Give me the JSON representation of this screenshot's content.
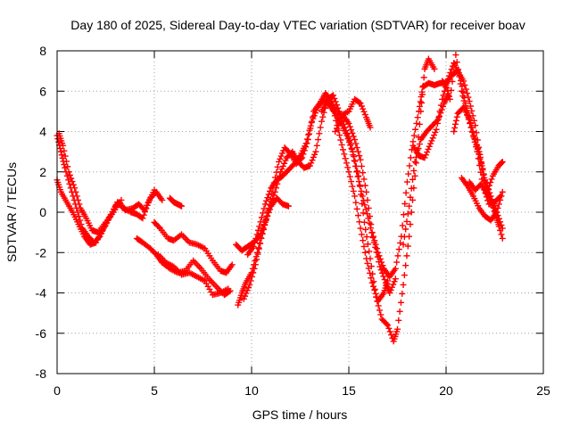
{
  "chart_data": {
    "type": "scatter",
    "title": "Day 180 of 2025, Sidereal Day-to-day VTEC variation (SDTVAR) for receiver boav",
    "xlabel": "GPS time / hours",
    "ylabel": "SDTVAR / TECUs",
    "xlim": [
      0,
      25
    ],
    "ylim": [
      -8,
      8
    ],
    "xticks": [
      "0",
      "5",
      "10",
      "15",
      "20",
      "25"
    ],
    "yticks": [
      "-8",
      "-6",
      "-4",
      "-2",
      "0",
      "2",
      "4",
      "6",
      "8"
    ],
    "grid": true,
    "marker": "+",
    "color": "#ff0000",
    "series": [
      {
        "points": [
          [
            0.0,
            3.8
          ],
          [
            0.2,
            3.0
          ],
          [
            0.4,
            2.2
          ],
          [
            0.7,
            1.2
          ],
          [
            1.0,
            0.2
          ],
          [
            1.3,
            -0.8
          ],
          [
            1.6,
            -1.2
          ],
          [
            1.9,
            -1.5
          ],
          [
            2.2,
            -1.2
          ],
          [
            2.6,
            -0.4
          ],
          [
            3.0,
            0.3
          ],
          [
            3.2,
            0.5
          ],
          [
            3.5,
            0.1
          ],
          [
            3.9,
            0.2
          ],
          [
            4.2,
            0.4
          ],
          [
            4.5,
            0.1
          ],
          [
            4.8,
            0.7
          ],
          [
            5.1,
            1.0
          ],
          [
            5.4,
            0.6
          ]
        ]
      },
      {
        "points": [
          [
            0.0,
            1.6
          ],
          [
            0.2,
            1.0
          ],
          [
            0.5,
            0.5
          ],
          [
            0.8,
            0.0
          ],
          [
            1.1,
            -0.6
          ],
          [
            1.4,
            -1.2
          ],
          [
            1.7,
            -1.6
          ],
          [
            2.0,
            -1.5
          ],
          [
            2.4,
            -0.8
          ],
          [
            2.8,
            -0.1
          ],
          [
            3.1,
            0.5
          ],
          [
            3.4,
            0.2
          ],
          [
            3.8,
            0.0
          ],
          [
            4.1,
            -0.1
          ],
          [
            4.4,
            -0.3
          ],
          [
            4.7,
            0.5
          ],
          [
            5.0,
            1.1
          ]
        ]
      },
      {
        "points": [
          [
            0.1,
            3.9
          ],
          [
            0.3,
            3.3
          ],
          [
            0.6,
            2.0
          ],
          [
            0.9,
            1.2
          ],
          [
            1.2,
            0.2
          ],
          [
            1.5,
            -0.3
          ],
          [
            1.8,
            -0.9
          ],
          [
            2.1,
            -1.0
          ],
          [
            2.5,
            -0.5
          ],
          [
            2.9,
            0.0
          ],
          [
            3.3,
            0.6
          ]
        ]
      },
      {
        "points": [
          [
            5.8,
            0.7
          ],
          [
            6.0,
            0.5
          ],
          [
            6.2,
            0.4
          ],
          [
            6.4,
            0.3
          ]
        ]
      },
      {
        "points": [
          [
            5.0,
            -0.5
          ],
          [
            5.3,
            -0.8
          ],
          [
            5.7,
            -1.3
          ],
          [
            6.0,
            -1.4
          ],
          [
            6.4,
            -1.1
          ],
          [
            6.8,
            -1.5
          ],
          [
            7.2,
            -1.6
          ],
          [
            7.6,
            -1.8
          ],
          [
            8.0,
            -2.4
          ],
          [
            8.4,
            -2.9
          ],
          [
            8.7,
            -3.0
          ],
          [
            9.0,
            -2.6
          ]
        ]
      },
      {
        "points": [
          [
            4.1,
            -1.3
          ],
          [
            4.4,
            -1.5
          ],
          [
            4.8,
            -1.8
          ],
          [
            5.1,
            -2.1
          ],
          [
            5.4,
            -2.5
          ],
          [
            5.8,
            -2.8
          ],
          [
            6.2,
            -3.0
          ],
          [
            6.6,
            -2.9
          ],
          [
            7.0,
            -2.4
          ],
          [
            7.4,
            -2.8
          ],
          [
            7.8,
            -3.3
          ],
          [
            8.2,
            -3.7
          ],
          [
            8.6,
            -4.1
          ],
          [
            8.9,
            -3.9
          ]
        ]
      },
      {
        "points": [
          [
            5.2,
            -2.1
          ],
          [
            5.6,
            -2.5
          ],
          [
            6.0,
            -2.7
          ],
          [
            6.4,
            -3.1
          ],
          [
            6.8,
            -3.0
          ],
          [
            7.2,
            -3.2
          ],
          [
            7.6,
            -3.4
          ],
          [
            8.0,
            -4.1
          ],
          [
            8.4,
            -4.0
          ],
          [
            8.8,
            -3.8
          ]
        ]
      },
      {
        "points": [
          [
            9.2,
            -1.6
          ],
          [
            9.5,
            -1.9
          ],
          [
            9.8,
            -1.7
          ],
          [
            10.1,
            -1.5
          ],
          [
            10.4,
            -1.2
          ],
          [
            10.7,
            -0.5
          ],
          [
            11.0,
            0.3
          ],
          [
            11.3,
            0.7
          ],
          [
            11.6,
            0.4
          ],
          [
            11.9,
            0.3
          ]
        ]
      },
      {
        "points": [
          [
            9.3,
            -4.6
          ],
          [
            9.5,
            -4.0
          ],
          [
            9.7,
            -3.5
          ],
          [
            10.0,
            -3.0
          ],
          [
            10.3,
            -2.0
          ],
          [
            10.6,
            -0.8
          ],
          [
            10.9,
            0.2
          ],
          [
            11.2,
            1.0
          ],
          [
            11.5,
            2.0
          ],
          [
            11.8,
            2.7
          ],
          [
            12.1,
            3.0
          ],
          [
            12.4,
            2.5
          ],
          [
            12.7,
            2.2
          ],
          [
            13.0,
            2.3
          ],
          [
            13.3,
            3.0
          ],
          [
            13.6,
            4.5
          ],
          [
            13.9,
            5.6
          ],
          [
            14.2,
            5.8
          ],
          [
            14.5,
            5.0
          ],
          [
            14.8,
            4.2
          ],
          [
            15.1,
            3.4
          ],
          [
            15.4,
            2.0
          ],
          [
            15.7,
            0.8
          ],
          [
            16.0,
            -0.3
          ],
          [
            16.3,
            -1.5
          ],
          [
            16.6,
            -2.7
          ],
          [
            16.9,
            -3.5
          ],
          [
            17.1,
            -4.0
          ],
          [
            17.4,
            -3.3
          ]
        ]
      },
      {
        "points": [
          [
            9.6,
            -4.3
          ],
          [
            9.9,
            -3.6
          ],
          [
            10.2,
            -2.6
          ],
          [
            10.5,
            -1.3
          ],
          [
            10.8,
            -0.2
          ],
          [
            11.1,
            1.2
          ],
          [
            11.4,
            2.5
          ],
          [
            11.7,
            3.2
          ],
          [
            12.0,
            2.9
          ],
          [
            12.3,
            2.4
          ],
          [
            12.6,
            2.7
          ],
          [
            12.9,
            3.6
          ],
          [
            13.2,
            5.0
          ],
          [
            13.5,
            5.4
          ],
          [
            13.8,
            5.9
          ],
          [
            14.1,
            5.5
          ],
          [
            14.4,
            4.3
          ],
          [
            14.7,
            3.1
          ],
          [
            15.0,
            2.0
          ],
          [
            15.3,
            0.8
          ],
          [
            15.6,
            -0.8
          ],
          [
            15.9,
            -2.3
          ],
          [
            16.2,
            -3.5
          ],
          [
            16.5,
            -4.4
          ],
          [
            16.8,
            -4.0
          ],
          [
            17.0,
            -3.4
          ]
        ]
      },
      {
        "points": [
          [
            9.8,
            -2.1
          ],
          [
            10.1,
            -1.7
          ],
          [
            10.4,
            -0.7
          ],
          [
            10.7,
            0.4
          ],
          [
            11.0,
            1.2
          ],
          [
            11.3,
            1.6
          ],
          [
            11.6,
            1.8
          ],
          [
            11.9,
            2.1
          ],
          [
            12.2,
            2.4
          ],
          [
            12.5,
            2.8
          ],
          [
            12.8,
            3.4
          ],
          [
            13.1,
            4.5
          ],
          [
            13.4,
            5.2
          ],
          [
            13.7,
            5.6
          ],
          [
            14.0,
            5.3
          ],
          [
            14.3,
            4.9
          ],
          [
            14.6,
            4.4
          ],
          [
            14.9,
            3.8
          ],
          [
            15.2,
            3.0
          ],
          [
            15.5,
            1.8
          ],
          [
            15.8,
            -0.5
          ],
          [
            16.1,
            -2.3
          ],
          [
            16.4,
            -4.2
          ],
          [
            16.7,
            -5.3
          ],
          [
            17.0,
            -5.6
          ],
          [
            17.3,
            -6.4
          ],
          [
            17.5,
            -5.8
          ],
          [
            17.8,
            -3.6
          ],
          [
            18.1,
            -1.2
          ],
          [
            18.4,
            1.8
          ],
          [
            18.7,
            5.0
          ],
          [
            18.9,
            7.1
          ],
          [
            19.1,
            7.6
          ],
          [
            19.4,
            7.1
          ]
        ]
      },
      {
        "points": [
          [
            13.6,
            5.0
          ],
          [
            13.9,
            5.5
          ],
          [
            14.2,
            5.3
          ],
          [
            14.6,
            4.8
          ],
          [
            15.0,
            5.0
          ],
          [
            15.3,
            5.6
          ],
          [
            15.6,
            5.4
          ],
          [
            15.9,
            4.7
          ],
          [
            16.1,
            4.2
          ]
        ]
      },
      {
        "points": [
          [
            14.3,
            4.0
          ],
          [
            14.7,
            4.8
          ],
          [
            15.0,
            4.4
          ],
          [
            15.3,
            3.6
          ],
          [
            15.6,
            2.6
          ],
          [
            15.9,
            1.0
          ],
          [
            16.2,
            -1.0
          ],
          [
            16.5,
            -2.0
          ],
          [
            16.8,
            -2.8
          ],
          [
            17.1,
            -3.2
          ],
          [
            17.4,
            -2.8
          ],
          [
            17.7,
            -1.2
          ],
          [
            18.0,
            1.5
          ],
          [
            18.3,
            3.5
          ],
          [
            18.6,
            5.0
          ],
          [
            18.8,
            6.2
          ],
          [
            19.1,
            6.4
          ],
          [
            19.4,
            6.3
          ],
          [
            19.7,
            6.4
          ],
          [
            20.0,
            6.4
          ],
          [
            20.3,
            6.8
          ],
          [
            20.6,
            7.0
          ],
          [
            20.9,
            6.5
          ],
          [
            21.2,
            5.5
          ],
          [
            21.5,
            4.3
          ],
          [
            21.8,
            2.5
          ],
          [
            22.0,
            1.5
          ],
          [
            22.3,
            0.6
          ],
          [
            22.6,
            -0.3
          ],
          [
            22.9,
            -1.3
          ]
        ]
      },
      {
        "points": [
          [
            18.3,
            3.3
          ],
          [
            18.6,
            2.8
          ],
          [
            18.9,
            2.7
          ],
          [
            19.2,
            3.4
          ],
          [
            19.5,
            4.1
          ],
          [
            19.8,
            5.6
          ],
          [
            20.1,
            6.6
          ],
          [
            20.4,
            7.4
          ],
          [
            20.7,
            6.8
          ],
          [
            21.0,
            5.4
          ],
          [
            21.3,
            4.2
          ],
          [
            21.6,
            3.0
          ],
          [
            21.9,
            1.3
          ],
          [
            22.2,
            0.4
          ],
          [
            22.5,
            0.5
          ],
          [
            22.8,
            0.8
          ]
        ]
      },
      {
        "points": [
          [
            17.8,
            -1.6
          ],
          [
            18.1,
            0.3
          ],
          [
            18.4,
            2.5
          ],
          [
            18.7,
            3.6
          ],
          [
            19.0,
            4.0
          ],
          [
            19.3,
            4.3
          ],
          [
            19.6,
            4.6
          ],
          [
            19.9,
            5.4
          ],
          [
            20.1,
            5.8
          ]
        ]
      },
      {
        "points": [
          [
            19.8,
            6.5
          ],
          [
            20.0,
            6.3
          ],
          [
            20.2,
            5.6
          ],
          [
            20.5,
            7.8
          ],
          [
            20.8,
            6.0
          ],
          [
            21.1,
            4.8
          ],
          [
            21.4,
            3.8
          ],
          [
            21.7,
            3.0
          ],
          [
            22.0,
            1.6
          ],
          [
            22.3,
            0.8
          ],
          [
            22.6,
            0.0
          ],
          [
            22.9,
            -0.8
          ]
        ]
      },
      {
        "points": [
          [
            20.4,
            4.0
          ],
          [
            20.6,
            4.9
          ],
          [
            20.9,
            5.2
          ],
          [
            21.2,
            4.6
          ],
          [
            21.5,
            3.6
          ],
          [
            21.8,
            2.4
          ],
          [
            22.1,
            1.0
          ],
          [
            22.4,
            1.8
          ],
          [
            22.7,
            2.3
          ],
          [
            22.9,
            2.5
          ]
        ]
      },
      {
        "points": [
          [
            20.8,
            1.7
          ],
          [
            21.1,
            1.3
          ],
          [
            21.4,
            0.8
          ],
          [
            21.7,
            0.2
          ],
          [
            22.0,
            -0.2
          ],
          [
            22.3,
            -0.4
          ],
          [
            22.6,
            0.0
          ],
          [
            22.9,
            1.0
          ]
        ]
      },
      {
        "points": [
          [
            21.2,
            1.5
          ],
          [
            21.5,
            1.1
          ],
          [
            21.8,
            1.4
          ],
          [
            22.1,
            0.9
          ],
          [
            22.4,
            0.4
          ],
          [
            22.7,
            -0.6
          ]
        ]
      }
    ]
  }
}
